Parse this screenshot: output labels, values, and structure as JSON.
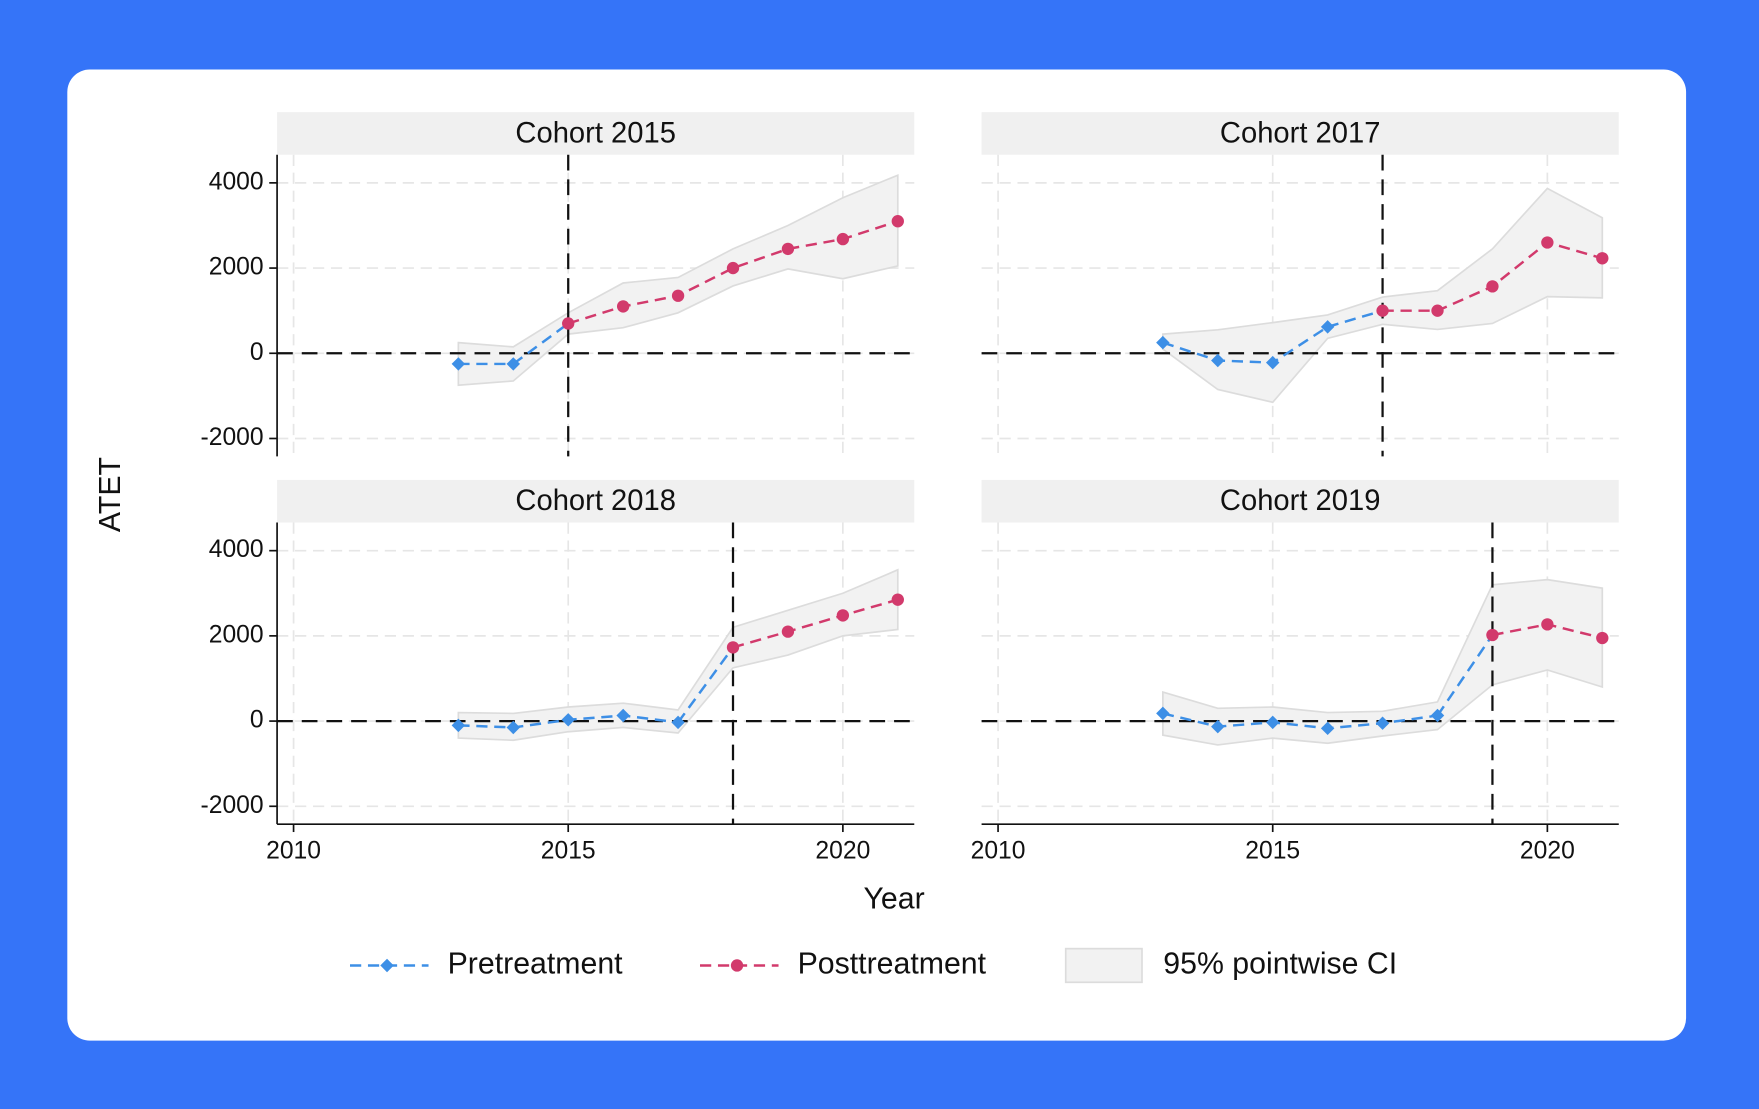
{
  "xlabel": "Year",
  "ylabel": "ATET",
  "chart_data": [
    {
      "type": "line",
      "title": "Cohort 2015",
      "x": [
        2013,
        2014,
        2015,
        2016,
        2017,
        2018,
        2019,
        2020,
        2021
      ],
      "series": [
        {
          "name": "Pretreatment",
          "color": "#3d8fe6",
          "values": [
            -250,
            -250,
            null,
            null,
            null,
            null,
            null,
            null,
            null
          ]
        },
        {
          "name": "Posttreatment",
          "color": "#d23a6c",
          "values": [
            null,
            null,
            700,
            1100,
            1350,
            2000,
            2450,
            2680,
            3100
          ]
        }
      ],
      "ci": {
        "name": "95% pointwise CI",
        "lower": [
          -750,
          -650,
          450,
          600,
          950,
          1580,
          1980,
          1750,
          2050
        ],
        "upper": [
          250,
          150,
          950,
          1650,
          1780,
          2450,
          3000,
          3650,
          4180
        ]
      },
      "vline": 2015,
      "hline": 0,
      "xlim": [
        2009.7,
        2021.3
      ],
      "ylim": [
        -2420,
        4660
      ],
      "xticks": [
        2010,
        2015,
        2020
      ],
      "yticks": [
        -2000,
        0,
        2000,
        4000
      ],
      "grid": true
    },
    {
      "type": "line",
      "title": "Cohort 2017",
      "x": [
        2013,
        2014,
        2015,
        2016,
        2017,
        2018,
        2019,
        2020,
        2021
      ],
      "series": [
        {
          "name": "Pretreatment",
          "color": "#3d8fe6",
          "values": [
            250,
            -170,
            -220,
            620,
            null,
            null,
            null,
            null,
            null
          ]
        },
        {
          "name": "Posttreatment",
          "color": "#d23a6c",
          "values": [
            null,
            null,
            null,
            null,
            1000,
            1000,
            1570,
            2600,
            2230
          ]
        }
      ],
      "ci": {
        "name": "95% pointwise CI",
        "lower": [
          100,
          -850,
          -1150,
          350,
          680,
          560,
          700,
          1330,
          1300
        ],
        "upper": [
          450,
          550,
          720,
          900,
          1320,
          1470,
          2450,
          3870,
          3180
        ]
      },
      "vline": 2017,
      "hline": 0,
      "xlim": [
        2009.7,
        2021.3
      ],
      "ylim": [
        -2420,
        4660
      ],
      "xticks": [
        2010,
        2015,
        2020
      ],
      "yticks": [
        -2000,
        0,
        2000,
        4000
      ],
      "grid": true
    },
    {
      "type": "line",
      "title": "Cohort 2018",
      "x": [
        2013,
        2014,
        2015,
        2016,
        2017,
        2018,
        2019,
        2020,
        2021
      ],
      "series": [
        {
          "name": "Pretreatment",
          "color": "#3d8fe6",
          "values": [
            -100,
            -150,
            30,
            130,
            -30,
            null,
            null,
            null,
            null
          ]
        },
        {
          "name": "Posttreatment",
          "color": "#d23a6c",
          "values": [
            null,
            null,
            null,
            null,
            null,
            1730,
            2100,
            2480,
            2850
          ]
        }
      ],
      "ci": {
        "name": "95% pointwise CI",
        "lower": [
          -400,
          -450,
          -250,
          -150,
          -280,
          1250,
          1550,
          2000,
          2150
        ],
        "upper": [
          200,
          180,
          330,
          420,
          260,
          2200,
          2600,
          3000,
          3550
        ]
      },
      "vline": 2018,
      "hline": 0,
      "xlim": [
        2009.7,
        2021.3
      ],
      "ylim": [
        -2420,
        4660
      ],
      "xticks": [
        2010,
        2015,
        2020
      ],
      "yticks": [
        -2000,
        0,
        2000,
        4000
      ],
      "grid": true
    },
    {
      "type": "line",
      "title": "Cohort 2019",
      "x": [
        2013,
        2014,
        2015,
        2016,
        2017,
        2018,
        2019,
        2020,
        2021
      ],
      "series": [
        {
          "name": "Pretreatment",
          "color": "#3d8fe6",
          "values": [
            180,
            -130,
            -30,
            -170,
            -50,
            130,
            null,
            null,
            null
          ]
        },
        {
          "name": "Posttreatment",
          "color": "#d23a6c",
          "values": [
            null,
            null,
            null,
            null,
            null,
            null,
            2020,
            2270,
            1950
          ]
        }
      ],
      "ci": {
        "name": "95% pointwise CI",
        "lower": [
          -330,
          -560,
          -400,
          -520,
          -350,
          -200,
          850,
          1200,
          800
        ],
        "upper": [
          680,
          300,
          330,
          200,
          230,
          450,
          3200,
          3320,
          3120
        ]
      },
      "vline": 2019,
      "hline": 0,
      "xlim": [
        2009.7,
        2021.3
      ],
      "ylim": [
        -2420,
        4660
      ],
      "xticks": [
        2010,
        2015,
        2020
      ],
      "yticks": [
        -2000,
        0,
        2000,
        4000
      ],
      "grid": true
    }
  ]
}
